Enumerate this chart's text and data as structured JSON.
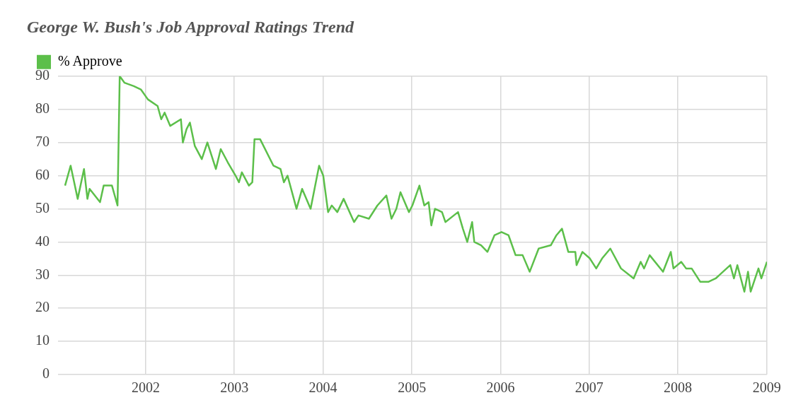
{
  "chart_data": {
    "type": "line",
    "title": "George W. Bush's Job Approval Ratings Trend",
    "x": [
      "2001-02-03",
      "2001-02-26",
      "2001-03-27",
      "2001-04-22",
      "2001-05-06",
      "2001-05-15",
      "2001-06-27",
      "2001-07-12",
      "2001-08-15",
      "2001-09-07",
      "2001-09-16",
      "2001-10-06",
      "2001-11-13",
      "2001-12-12",
      "2002-01-10",
      "2002-02-19",
      "2002-03-06",
      "2002-03-20",
      "2002-04-12",
      "2002-05-26",
      "2002-06-03",
      "2002-06-18",
      "2002-07-02",
      "2002-07-22",
      "2002-08-20",
      "2002-09-12",
      "2002-10-17",
      "2002-11-06",
      "2002-12-05",
      "2003-01-06",
      "2003-01-20",
      "2003-02-01",
      "2003-03-02",
      "2003-03-16",
      "2003-03-25",
      "2003-04-17",
      "2003-06-11",
      "2003-07-10",
      "2003-07-24",
      "2003-08-08",
      "2003-09-14",
      "2003-10-07",
      "2003-11-11",
      "2003-12-16",
      "2004-01-02",
      "2004-01-22",
      "2004-02-06",
      "2004-02-29",
      "2004-03-26",
      "2004-05-08",
      "2004-05-26",
      "2004-07-08",
      "2004-08-12",
      "2004-09-18",
      "2004-10-09",
      "2004-10-29",
      "2004-11-15",
      "2004-12-20",
      "2005-01-03",
      "2005-02-01",
      "2005-02-21",
      "2005-03-11",
      "2005-03-22",
      "2005-04-06",
      "2005-05-05",
      "2005-05-19",
      "2005-07-10",
      "2005-07-30",
      "2005-08-17",
      "2005-09-06",
      "2005-09-15",
      "2005-10-13",
      "2005-11-08",
      "2005-12-07",
      "2006-01-05",
      "2006-02-03",
      "2006-03-04",
      "2006-04-02",
      "2006-05-01",
      "2006-06-07",
      "2006-07-27",
      "2006-08-19",
      "2006-09-11",
      "2006-10-07",
      "2006-11-05",
      "2006-11-10",
      "2006-12-04",
      "2007-01-04",
      "2007-01-30",
      "2007-02-23",
      "2007-03-29",
      "2007-05-12",
      "2007-07-03",
      "2007-08-01",
      "2007-08-15",
      "2007-09-07",
      "2007-11-01",
      "2007-12-03",
      "2007-12-14",
      "2008-01-15",
      "2008-02-04",
      "2008-02-27",
      "2008-04-02",
      "2008-05-07",
      "2008-06-05",
      "2008-08-04",
      "2008-08-19",
      "2008-09-02",
      "2008-10-01",
      "2008-10-16",
      "2008-10-27",
      "2008-11-28",
      "2008-12-10",
      "2009-01-02"
    ],
    "series": [
      {
        "name": "% Approve",
        "color": "#5cbf4a",
        "values": [
          57,
          63,
          53,
          62,
          53,
          56,
          52,
          57,
          57,
          51,
          90,
          88,
          87,
          86,
          83,
          81,
          77,
          79,
          75,
          77,
          70,
          74,
          76,
          69,
          65,
          70,
          62,
          68,
          64,
          60,
          58,
          61,
          57,
          58,
          71,
          71,
          63,
          62,
          58,
          60,
          50,
          56,
          50,
          63,
          60,
          49,
          51,
          49,
          53,
          46,
          48,
          47,
          51,
          54,
          47,
          50,
          55,
          49,
          51,
          57,
          51,
          52,
          45,
          50,
          49,
          46,
          49,
          44,
          40,
          46,
          40,
          39,
          37,
          42,
          43,
          42,
          36,
          36,
          31,
          38,
          39,
          42,
          44,
          37,
          37,
          33,
          37,
          35,
          32,
          35,
          38,
          32,
          29,
          34,
          32,
          36,
          31,
          37,
          32,
          34,
          32,
          32,
          28,
          28,
          29,
          33,
          29,
          33,
          25,
          31,
          25,
          32,
          29,
          34
        ]
      }
    ],
    "xlim": [
      "2001-01-05",
      "2009-01-02"
    ],
    "xticks": [
      "2002",
      "2003",
      "2004",
      "2005",
      "2006",
      "2007",
      "2008",
      "2009"
    ],
    "ylim": [
      0,
      90
    ],
    "yticks": [
      0,
      10,
      20,
      30,
      40,
      50,
      60,
      70,
      80,
      90
    ],
    "grid": true,
    "legend": "top left",
    "marker": "none",
    "line_style": "solid"
  }
}
